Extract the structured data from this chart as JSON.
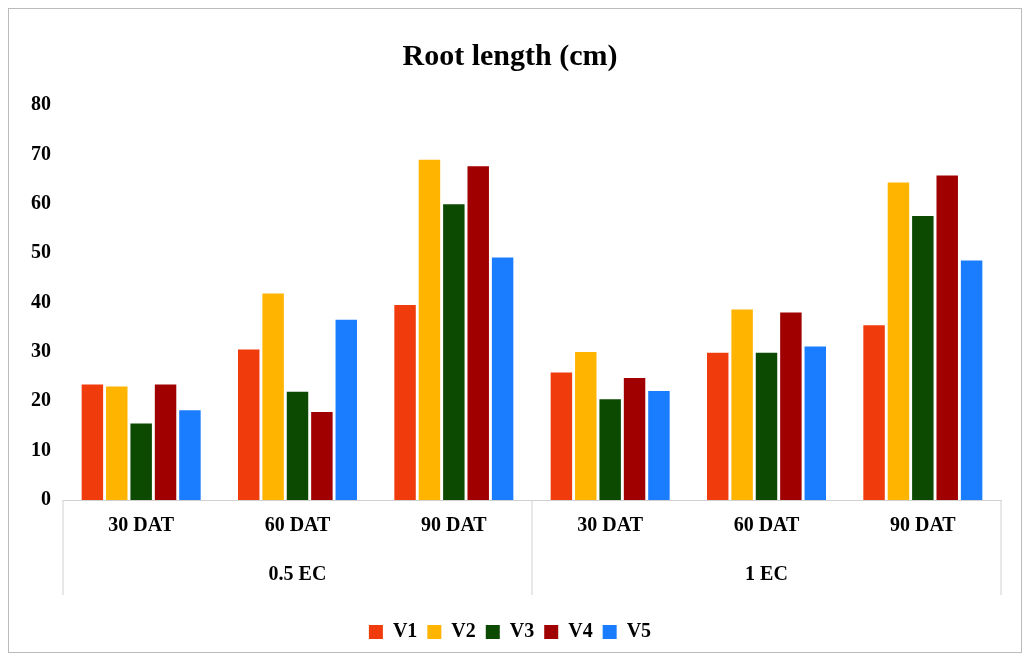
{
  "chart_data": {
    "type": "bar",
    "title": "Root length (cm)",
    "categories": [
      "30 DAT",
      "60 DAT",
      "90 DAT",
      "30 DAT",
      "60 DAT",
      "90 DAT"
    ],
    "series": [
      {
        "name": "V1",
        "color": "#f03c0c",
        "values": [
          23.4,
          30.5,
          39.5,
          25.8,
          29.8,
          35.4
        ]
      },
      {
        "name": "V2",
        "color": "#ffb400",
        "values": [
          23,
          41.8,
          68.9,
          30,
          38.6,
          64.3
        ]
      },
      {
        "name": "V3",
        "color": "#0b4a00",
        "values": [
          15.5,
          21.9,
          59.9,
          20.4,
          29.8,
          57.5
        ]
      },
      {
        "name": "V4",
        "color": "#a00000",
        "values": [
          23.4,
          17.8,
          67.6,
          24.7,
          38,
          65.7
        ]
      },
      {
        "name": "V5",
        "color": "#1a7cff",
        "values": [
          18.2,
          36.5,
          49.1,
          22.1,
          31.1,
          48.5
        ]
      }
    ],
    "annotations": [
      "0.5 EC",
      "1 EC"
    ],
    "ylim": [
      0,
      80
    ],
    "yticks": [
      0,
      10,
      20,
      30,
      40,
      50,
      60,
      70,
      80
    ],
    "grid": false,
    "legend": "bottom"
  }
}
